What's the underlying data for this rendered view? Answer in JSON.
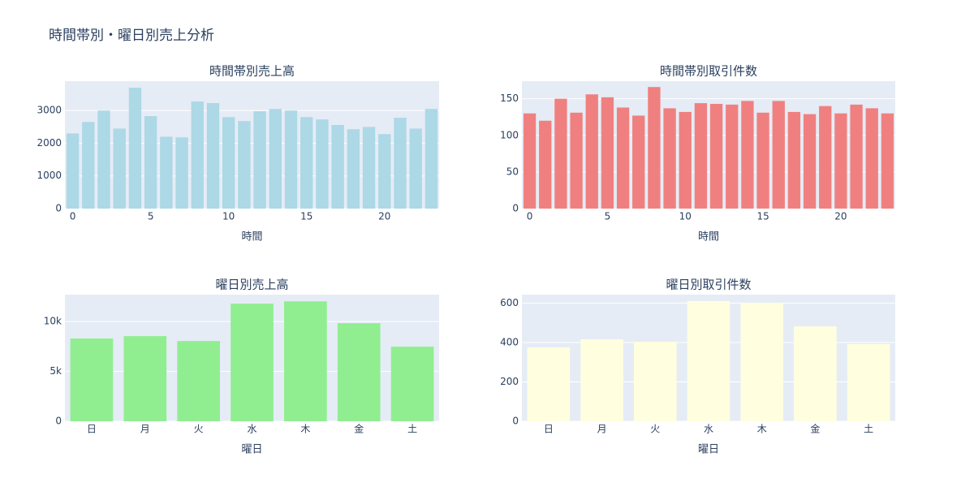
{
  "title": "時間帯別・曜日別売上分析",
  "chart_data": [
    {
      "type": "bar",
      "title": "時間帯別売上高",
      "x_label": "時間",
      "x": [
        0,
        1,
        2,
        3,
        4,
        5,
        6,
        7,
        8,
        9,
        10,
        11,
        12,
        13,
        14,
        15,
        16,
        17,
        18,
        19,
        20,
        21,
        22,
        23
      ],
      "values": [
        2300,
        2650,
        3000,
        2450,
        3700,
        2830,
        2200,
        2180,
        3280,
        3230,
        2800,
        2680,
        2980,
        3050,
        3000,
        2800,
        2730,
        2560,
        2430,
        2500,
        2280,
        2780,
        2450,
        3050
      ],
      "color": "#add8e6",
      "xlim": [
        -0.5,
        23.5
      ],
      "xticks": [
        0,
        5,
        10,
        15,
        20
      ],
      "ylim": [
        0,
        3900
      ],
      "yticks": [
        0,
        1000,
        2000,
        3000
      ],
      "grid": true
    },
    {
      "type": "bar",
      "title": "時間帯別取引件数",
      "x_label": "時間",
      "x": [
        0,
        1,
        2,
        3,
        4,
        5,
        6,
        7,
        8,
        9,
        10,
        11,
        12,
        13,
        14,
        15,
        16,
        17,
        18,
        19,
        20,
        21,
        22,
        23
      ],
      "values": [
        130,
        120,
        150,
        131,
        156,
        152,
        138,
        127,
        166,
        137,
        132,
        144,
        143,
        142,
        147,
        131,
        147,
        132,
        129,
        140,
        130,
        142,
        137,
        130
      ],
      "color": "#f08080",
      "xlim": [
        -0.5,
        23.5
      ],
      "xticks": [
        0,
        5,
        10,
        15,
        20
      ],
      "ylim": [
        0,
        174
      ],
      "yticks": [
        0,
        50,
        100,
        150
      ],
      "grid": true
    },
    {
      "type": "bar",
      "title": "曜日別売上高",
      "x_label": "曜日",
      "categories": [
        "日",
        "月",
        "火",
        "水",
        "木",
        "金",
        "土"
      ],
      "values": [
        8300,
        8540,
        8050,
        11800,
        12030,
        9840,
        7480
      ],
      "color": "#90ee90",
      "ylim": [
        0,
        12700
      ],
      "yticks": [
        0,
        {
          "value": 5000,
          "label": "5k"
        },
        {
          "value": 10000,
          "label": "10k"
        }
      ],
      "grid": true
    },
    {
      "type": "bar",
      "title": "曜日別取引件数",
      "x_label": "曜日",
      "categories": [
        "日",
        "月",
        "火",
        "水",
        "木",
        "金",
        "土"
      ],
      "values": [
        375,
        416,
        404,
        610,
        602,
        482,
        392
      ],
      "color": "#ffffe0",
      "ylim": [
        0,
        643
      ],
      "yticks": [
        0,
        200,
        400,
        600
      ],
      "grid": true
    }
  ]
}
